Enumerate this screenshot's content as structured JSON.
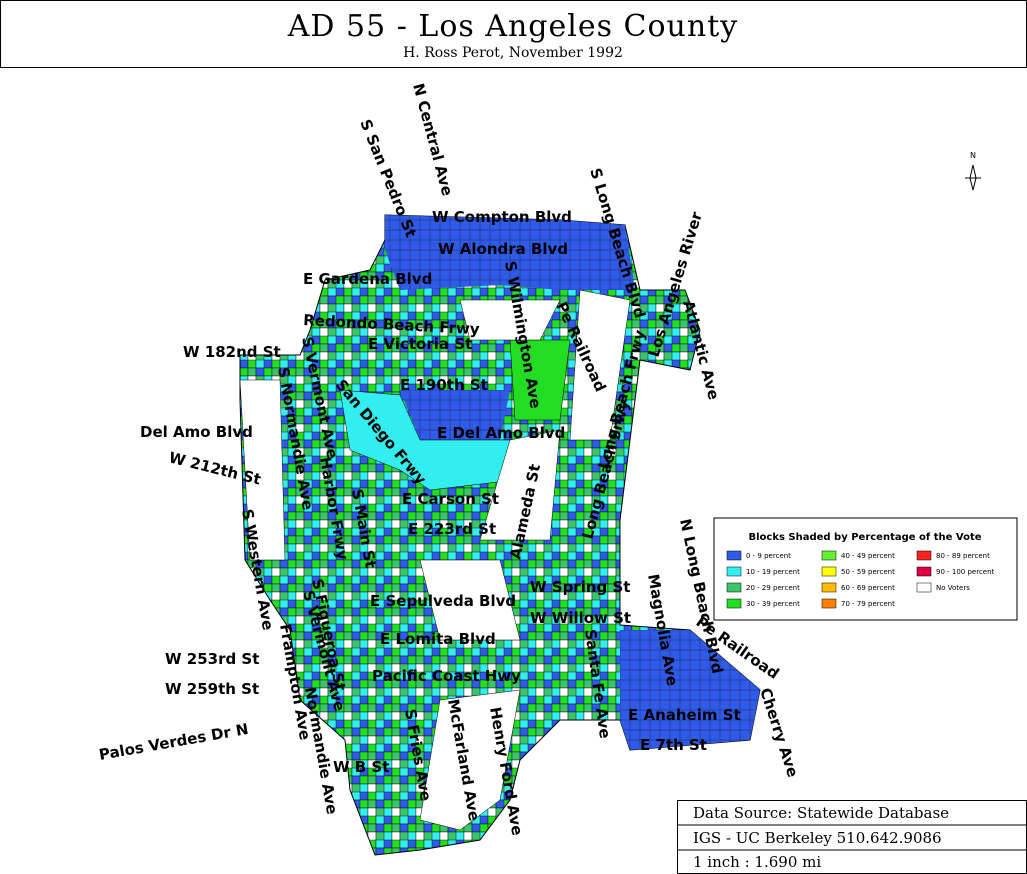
{
  "header": {
    "title": "AD 55 - Los Angeles County",
    "subtitle": "H. Ross Perot, November 1992"
  },
  "north_label": "N",
  "streets": [
    "S San Pedro St",
    "N Central Ave",
    "W Compton Blvd",
    "W Alondra Blvd",
    "S Long Beach Blvd",
    "Los Angeles River",
    "E Gardena Blvd",
    "S Wilmington Ave",
    "Redondo Beach Frwy",
    "E Victoria St",
    "Pe Railroad",
    "Atlantic Ave",
    "W 182nd St",
    "S Vermont Ave",
    "San Diego Frwy",
    "E 190th St",
    "Long Beach Frwy",
    "S Normandie Ave",
    "Del Amo Blvd",
    "E Del Amo Blvd",
    "W 212th St",
    "Harbor Frwy",
    "Alameda St",
    "S Main St",
    "E Carson St",
    "E 223rd St",
    "Long Beach Frwy",
    "S Western Ave",
    "S Figueroa St",
    "N Long Beach Blvd",
    "W Spring St",
    "Magnolia Ave",
    "E Sepulveda Blvd",
    "W Willow St",
    "Pe Railroad",
    "S Vermont Ave",
    "Santa Fe Ave",
    "E Lomita Blvd",
    "W 253rd St",
    "W 259th St",
    "Pacific Coast Hwy",
    "Frampton Ave",
    "Normandie Ave",
    "E Anaheim St",
    "Cherry Ave",
    "E 7th St",
    "Palos Verdes Dr N",
    "S Fries Ave",
    "McFarland Ave",
    "Henry Ford Ave",
    "W B St"
  ],
  "legend": {
    "title": "Blocks Shaded by Percentage of the Vote",
    "items": [
      {
        "label": "0 - 9 percent",
        "color": "#2f5be6"
      },
      {
        "label": "10 - 19 percent",
        "color": "#33eeee"
      },
      {
        "label": "20 - 29 percent",
        "color": "#3cc46a"
      },
      {
        "label": "30 - 39 percent",
        "color": "#22dd22"
      },
      {
        "label": "40 - 49 percent",
        "color": "#66ee33"
      },
      {
        "label": "50 - 59 percent",
        "color": "#ffff00"
      },
      {
        "label": "60 - 69 percent",
        "color": "#ffbb00"
      },
      {
        "label": "70 - 79 percent",
        "color": "#ff8000"
      },
      {
        "label": "80 - 89 percent",
        "color": "#ff2020"
      },
      {
        "label": "90 - 100 percent",
        "color": "#e00040"
      },
      {
        "label": "No Voters",
        "color": "#ffffff"
      }
    ]
  },
  "footer": {
    "source": "Data Source: Statewide Database",
    "institution": "IGS - UC Berkeley 510.642.9086",
    "scale": "1 inch : 1.690 mi"
  }
}
